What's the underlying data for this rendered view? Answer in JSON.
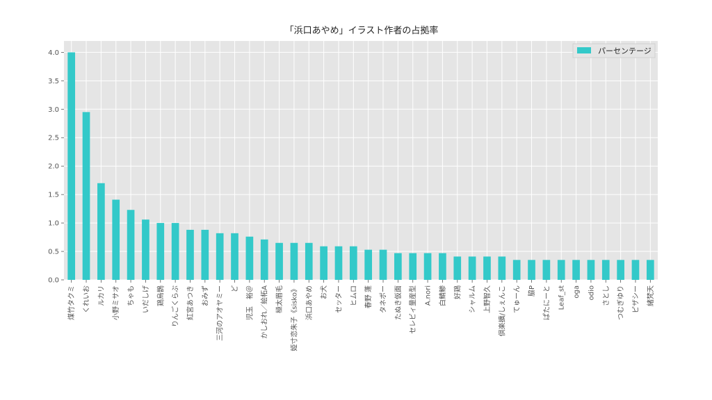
{
  "chart_data": {
    "type": "bar",
    "title": "「浜口あやめ」イラスト作者の占拠率",
    "xlabel": "",
    "ylabel": "",
    "ylim": [
      0,
      4.2
    ],
    "yticks": [
      0.0,
      0.5,
      1.0,
      1.5,
      2.0,
      2.5,
      3.0,
      3.5,
      4.0
    ],
    "grid": true,
    "legend": {
      "position": "top-right",
      "entries": [
        "パーセンテージ"
      ]
    },
    "categories": [
      "煤竹タクミ",
      "くれいお",
      "ルカリ",
      "小野ミサオ",
      "ちゃも",
      "いだしげ",
      "鶏烏鵲",
      "りんごくらぶ",
      "紅宮あつき",
      "おみず",
      "三河のアオヤミー",
      "ど",
      "児玉　裕＠",
      "かしおれ／絵柘A",
      "極太眉毛",
      "姫寸恋朱子《sisko》",
      "浜口あやめ",
      "お犬",
      "セッター",
      "ヒムロ",
      "春野 蓬",
      "タネポー",
      "たぬき仮面",
      "セレビィ量産型",
      "A.nori",
      "白鯖鯵",
      "好鶏",
      "シャルム",
      "上野智久",
      "倶楽擴/しぇんこ",
      "てゅーん",
      "脇P",
      "ぱたにーと",
      "Leaf_st",
      "oga",
      "odio",
      "さとし",
      "つむぎゆり",
      "ピザシー",
      "緒梵天"
    ],
    "series": [
      {
        "name": "パーセンテージ",
        "color": "#33c9c9",
        "values": [
          4.0,
          2.95,
          1.7,
          1.41,
          1.23,
          1.06,
          1.0,
          1.0,
          0.88,
          0.88,
          0.82,
          0.82,
          0.76,
          0.71,
          0.65,
          0.65,
          0.65,
          0.59,
          0.59,
          0.59,
          0.53,
          0.53,
          0.47,
          0.47,
          0.47,
          0.47,
          0.41,
          0.41,
          0.41,
          0.41,
          0.35,
          0.35,
          0.35,
          0.35,
          0.35,
          0.35,
          0.35,
          0.35,
          0.35,
          0.35
        ]
      }
    ],
    "colors": {
      "plot_background": "#e5e5e5",
      "grid": "#ffffff",
      "bar": "#33c9c9"
    }
  }
}
